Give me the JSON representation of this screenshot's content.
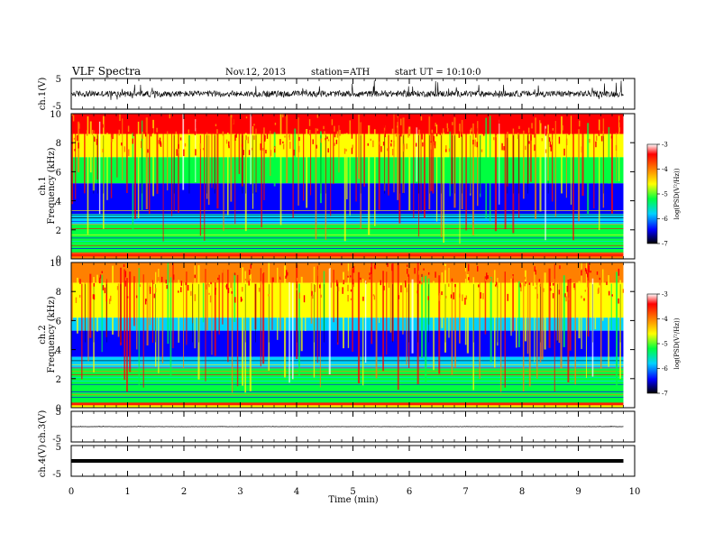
{
  "header": {
    "title": "VLF  Spectra",
    "date": "Nov.12, 2013",
    "station": "station=ATH",
    "start": "start  UT  =   10:10:0"
  },
  "chart_data": [
    {
      "type": "line",
      "panel": "ch1-waveform",
      "ylabel": "ch.1(V)",
      "ylim": [
        -5,
        5
      ],
      "yticks": [
        "5",
        "-5"
      ],
      "y_level_note": "noisy trace centred near 0 V"
    },
    {
      "type": "heatmap",
      "panel": "ch1-spectrogram",
      "ylabel": "Frequency (kHz)",
      "channel_label": "ch.1",
      "ylim": [
        0,
        10
      ],
      "yticks": [
        "0",
        "2",
        "4",
        "6",
        "8",
        "10"
      ],
      "colorbar": {
        "label": "log(PSD(V²/Hz))",
        "range": [
          -7,
          -3
        ],
        "ticks": [
          "-3",
          "-4",
          "-5",
          "-6",
          "-7"
        ],
        "colors": [
          "#000000",
          "#0000ff",
          "#00d0ff",
          "#00ff40",
          "#ffff00",
          "#ff8000",
          "#ff0000",
          "#ffffff"
        ]
      }
    },
    {
      "type": "heatmap",
      "panel": "ch2-spectrogram",
      "ylabel": "Frequency (kHz)",
      "channel_label": "ch.2",
      "ylim": [
        0,
        10
      ],
      "yticks": [
        "0",
        "2",
        "4",
        "6",
        "8",
        "10"
      ],
      "colorbar": {
        "label": "log(PSD(V²/Hz))",
        "range": [
          -7,
          -3
        ],
        "ticks": [
          "-3",
          "-4",
          "-5",
          "-6",
          "-7"
        ]
      }
    },
    {
      "type": "line",
      "panel": "ch3-waveform",
      "ylabel": "ch.3(V)",
      "ylim": [
        -5,
        5
      ],
      "yticks": [
        "5",
        "-5"
      ],
      "level": 0
    },
    {
      "type": "line",
      "panel": "ch4-waveform",
      "ylabel": "ch.4(V)",
      "ylim": [
        -5,
        5
      ],
      "yticks": [
        "5",
        "-5"
      ],
      "level": 0
    }
  ],
  "xaxis": {
    "label": "Time  (min)",
    "range": [
      0,
      10
    ],
    "data_end": 9.8,
    "ticks": [
      "0",
      "1",
      "2",
      "3",
      "4",
      "5",
      "6",
      "7",
      "8",
      "9",
      "10"
    ]
  }
}
